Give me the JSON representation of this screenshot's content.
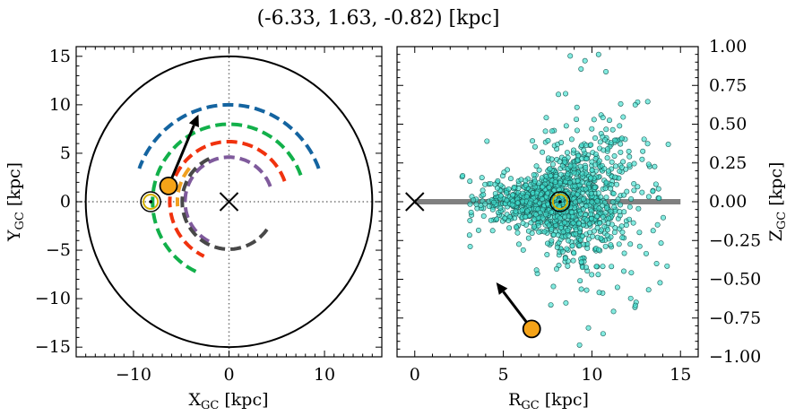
{
  "figure": {
    "title": "(-6.33, 1.63, -0.82) [kpc]"
  },
  "chart_data": [
    {
      "type": "scatter",
      "panel": "left",
      "xlabel": "X",
      "xlabel_sub": "GC",
      "xlabel_unit": " [kpc]",
      "ylabel": "Y",
      "ylabel_sub": "GC",
      "ylabel_unit": " [kpc]",
      "xlim": [
        -16,
        16
      ],
      "ylim": [
        -16,
        16
      ],
      "xticks": [
        -10,
        0,
        10
      ],
      "xtick_labels": [
        "−10",
        "0",
        "10"
      ],
      "yticks": [
        -15,
        -10,
        -5,
        0,
        5,
        10,
        15
      ],
      "ytick_labels": [
        "−15",
        "−10",
        "−5",
        "0",
        "5",
        "10",
        "15"
      ],
      "grid": false,
      "outer_circle_radius": 15,
      "arcs": [
        {
          "radius": 10.0,
          "start_deg": 20,
          "end_deg": 160,
          "color": "#1464a0"
        },
        {
          "radius": 8.0,
          "start_deg": 20,
          "end_deg": 245,
          "color": "#12b04a"
        },
        {
          "radius": 6.2,
          "start_deg": 20,
          "end_deg": 245,
          "color": "#f0320e"
        },
        {
          "radius": 4.6,
          "start_deg": 20,
          "end_deg": 245,
          "color": "#7f5a9c"
        },
        {
          "radius": 5.4,
          "start_deg": 140,
          "end_deg": 185,
          "color": "#f0a020"
        },
        {
          "radius": 4.9,
          "start_deg": 115,
          "end_deg": 330,
          "color": "#484848"
        }
      ],
      "sun": {
        "x": -8.2,
        "y": 0.0
      },
      "galactic_center": {
        "x": 0,
        "y": 0
      },
      "target": {
        "x": -6.33,
        "y": 1.63
      },
      "velocity_arrow": {
        "from": [
          -6.33,
          1.63
        ],
        "to": [
          -3.2,
          9.0
        ]
      }
    },
    {
      "type": "scatter",
      "panel": "right",
      "xlabel": "R",
      "xlabel_sub": "GC",
      "xlabel_unit": " [kpc]",
      "ylabel": "Z",
      "ylabel_sub": "GC",
      "ylabel_unit": " [kpc]",
      "xlim": [
        -1,
        16
      ],
      "ylim": [
        -1.0,
        1.0
      ],
      "xticks": [
        0,
        5,
        10,
        15
      ],
      "xtick_labels": [
        "0",
        "5",
        "10",
        "15"
      ],
      "yticks": [
        -1.0,
        -0.75,
        -0.5,
        -0.25,
        0.0,
        0.25,
        0.5,
        0.75,
        1.0
      ],
      "ytick_labels": [
        "−1.00",
        "−0.75",
        "−0.50",
        "−0.25",
        "0.00",
        "0.25",
        "0.50",
        "0.75",
        "1.00"
      ],
      "grid": false,
      "disk_line": {
        "x": [
          0,
          15
        ],
        "y": 0,
        "color": "#808080"
      },
      "points_color": "#40e0d0",
      "galactic_center": {
        "x": 0,
        "y": 0
      },
      "sun": {
        "x": 8.2,
        "y": 0.0
      },
      "target": {
        "x": 6.6,
        "y": -0.82
      },
      "velocity_arrow": {
        "from": [
          6.6,
          -0.82
        ],
        "to": [
          4.6,
          -0.52
        ]
      }
    }
  ]
}
